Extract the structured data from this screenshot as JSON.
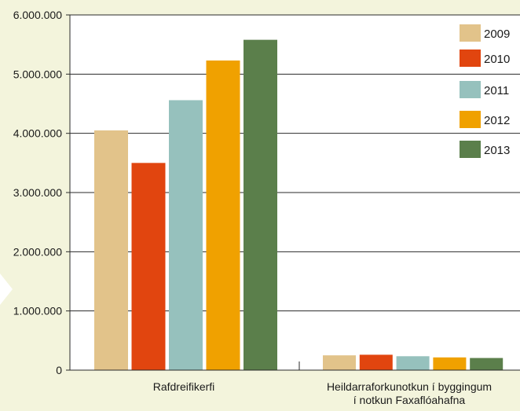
{
  "chart_data": {
    "type": "bar",
    "categories": [
      [
        "Rafdreifikerfi"
      ],
      [
        "Heildarraforkunotkun í byggingum",
        "í notkun Faxaflóahafna"
      ]
    ],
    "series": [
      {
        "name": "2009",
        "color": "#e2c38a",
        "values": [
          4050000,
          250000
        ]
      },
      {
        "name": "2010",
        "color": "#e1450f",
        "values": [
          3500000,
          260000
        ]
      },
      {
        "name": "2011",
        "color": "#96c1bd",
        "values": [
          4560000,
          235000
        ]
      },
      {
        "name": "2012",
        "color": "#f0a100",
        "values": [
          5230000,
          215000
        ]
      },
      {
        "name": "2013",
        "color": "#5b7f4b",
        "values": [
          5580000,
          205000
        ]
      }
    ],
    "ylim": [
      0,
      6000000
    ],
    "yticks": [
      "0",
      "1.000.000",
      "2.000.000",
      "3.000.000",
      "4.000.000",
      "5.000.000",
      "6.000.000"
    ],
    "ytick_values": [
      0,
      1000000,
      2000000,
      3000000,
      4000000,
      5000000,
      6000000
    ],
    "grid": true,
    "legend_position": "top-right",
    "title": "",
    "xlabel": "",
    "ylabel": ""
  },
  "colors": {
    "background": "#f3f4dc",
    "plot_background": "#ffffff",
    "grid": "#2a2a2a",
    "accent_arrow": "#ffffff"
  }
}
